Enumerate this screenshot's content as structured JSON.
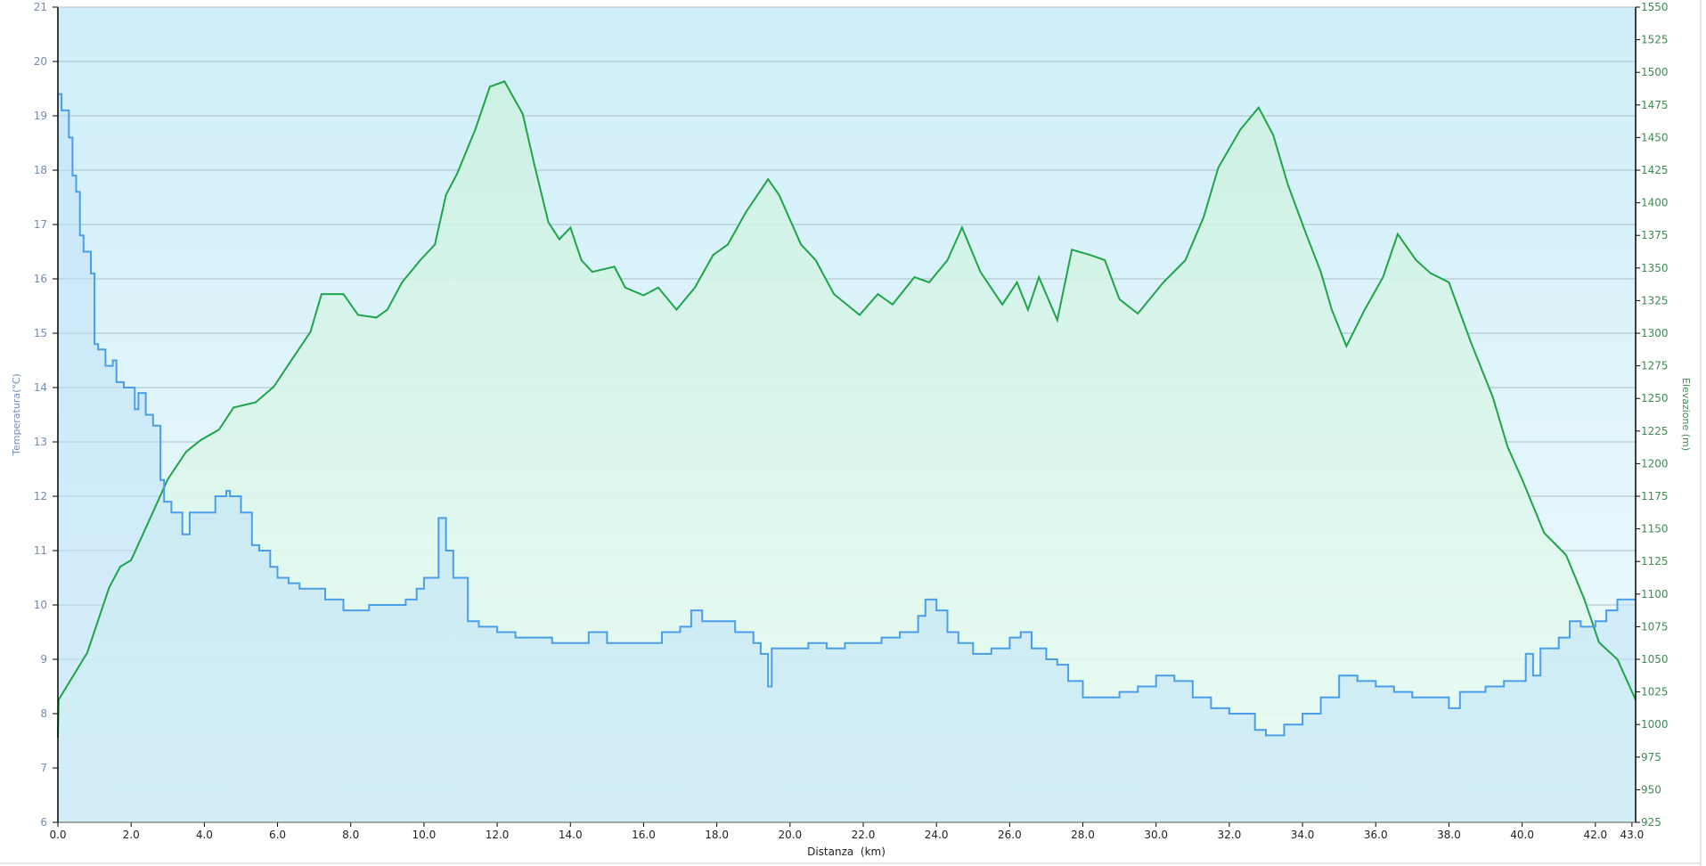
{
  "chart_data": {
    "type": "line",
    "title": "",
    "xlabel": "Distanza  (km)",
    "ylabel_left": "Temperatura(°C)",
    "ylabel_right": "Elevazione (m)",
    "xlim": [
      0,
      43.1
    ],
    "ylim_left": [
      6,
      21
    ],
    "ylim_right": [
      925,
      1550
    ],
    "x_ticks": [
      "0.0",
      "2.0",
      "4.0",
      "6.0",
      "8.0",
      "10.0",
      "12.0",
      "14.0",
      "16.0",
      "18.0",
      "20.0",
      "22.0",
      "24.0",
      "26.0",
      "28.0",
      "30.0",
      "32.0",
      "34.0",
      "36.0",
      "38.0",
      "40.0",
      "42.0",
      "43.0"
    ],
    "y_ticks_left": [
      "6",
      "7",
      "8",
      "9",
      "10",
      "11",
      "12",
      "13",
      "14",
      "15",
      "16",
      "17",
      "18",
      "19",
      "20",
      "21"
    ],
    "y_ticks_right": [
      "925",
      "950",
      "975",
      "1000",
      "1025",
      "1050",
      "1075",
      "1100",
      "1125",
      "1150",
      "1175",
      "1200",
      "1225",
      "1250",
      "1275",
      "1300",
      "1325",
      "1350",
      "1375",
      "1400",
      "1425",
      "1450",
      "1475",
      "1500",
      "1525",
      "1550"
    ],
    "grid": true,
    "colors": {
      "temperature": "#4a9ee8",
      "temperature_fill": "#bfe2f7",
      "elevation": "#1fa44a",
      "elevation_fill": "#dcf7ea",
      "background_top": "#cfeef9",
      "background_bottom": "#f2fbfd",
      "left_axis_text": "#6f8db5",
      "right_axis_text": "#3f8a55",
      "grid": "#a9bec6"
    },
    "series": [
      {
        "axis": "right",
        "x": [
          0,
          0.02,
          0.8,
          1.4,
          1.7,
          2.0,
          2.6,
          3.0,
          3.5,
          3.9,
          4.4,
          4.8,
          5.4,
          5.9,
          6.3,
          6.9,
          7.2,
          7.8,
          8.2,
          8.7,
          9.0,
          9.4,
          9.9,
          10.3,
          10.6,
          10.9,
          11.4,
          11.8,
          12.2,
          12.7,
          13.0,
          13.4,
          13.7,
          14.0,
          14.3,
          14.6,
          15.2,
          15.5,
          16.0,
          16.4,
          16.9,
          17.4,
          17.9,
          18.3,
          18.8,
          19.4,
          19.7,
          20.3,
          20.7,
          21.2,
          21.9,
          22.4,
          22.8,
          23.4,
          23.8,
          24.3,
          24.7,
          25.2,
          25.8,
          26.2,
          26.5,
          26.8,
          27.3,
          27.7,
          28.2,
          28.6,
          29.0,
          29.5,
          30.2,
          30.8,
          31.3,
          31.7,
          32.3,
          32.8,
          33.2,
          33.6,
          34.1,
          34.5,
          34.8,
          35.2,
          35.7,
          36.2,
          36.6,
          37.1,
          37.5,
          38.0,
          38.6,
          39.2,
          39.6,
          40.0,
          40.6,
          41.2,
          41.7,
          42.1,
          42.6,
          43.1
        ],
        "values": [
          990,
          1019,
          1055,
          1105,
          1121,
          1126,
          1163,
          1188,
          1209,
          1218,
          1226,
          1243,
          1247,
          1259,
          1276,
          1301,
          1330,
          1330,
          1314,
          1312,
          1318,
          1339,
          1356,
          1368,
          1406,
          1422,
          1456,
          1489,
          1493,
          1468,
          1431,
          1385,
          1372,
          1381,
          1356,
          1347,
          1351,
          1335,
          1329,
          1335,
          1318,
          1335,
          1360,
          1368,
          1393,
          1418,
          1406,
          1368,
          1356,
          1330,
          1314,
          1330,
          1322,
          1343,
          1339,
          1356,
          1381,
          1347,
          1322,
          1339,
          1318,
          1343,
          1310,
          1364,
          1360,
          1356,
          1326,
          1315,
          1339,
          1356,
          1389,
          1427,
          1456,
          1473,
          1452,
          1414,
          1376,
          1347,
          1318,
          1290,
          1318,
          1343,
          1376,
          1356,
          1346,
          1339,
          1293,
          1251,
          1213,
          1188,
          1147,
          1130,
          1096,
          1063,
          1050,
          1019
        ]
      },
      {
        "axis": "left",
        "step": true,
        "x": [
          0,
          0.1,
          0.3,
          0.4,
          0.5,
          0.6,
          0.7,
          0.9,
          1.0,
          1.1,
          1.3,
          1.5,
          1.6,
          1.8,
          2.1,
          2.2,
          2.4,
          2.6,
          2.8,
          2.9,
          3.1,
          3.4,
          3.6,
          4.0,
          4.3,
          4.6,
          4.7,
          5.0,
          5.3,
          5.5,
          5.8,
          6.0,
          6.3,
          6.6,
          7.0,
          7.3,
          7.8,
          8.1,
          8.5,
          9.0,
          9.5,
          9.8,
          10.0,
          10.4,
          10.6,
          10.8,
          11.2,
          11.5,
          12.0,
          12.5,
          13.0,
          13.5,
          14.0,
          14.5,
          15.0,
          15.5,
          16.0,
          16.5,
          17.0,
          17.3,
          17.6,
          18.0,
          18.5,
          19.0,
          19.2,
          19.4,
          19.5,
          20.0,
          20.5,
          21.0,
          21.5,
          22.0,
          22.5,
          23.0,
          23.5,
          23.7,
          24.0,
          24.3,
          24.6,
          25.0,
          25.5,
          26.0,
          26.3,
          26.6,
          27.0,
          27.3,
          27.6,
          28.0,
          28.5,
          29.0,
          29.5,
          30.0,
          30.5,
          31.0,
          31.5,
          32.0,
          32.5,
          32.7,
          33.0,
          33.5,
          34.0,
          34.5,
          35.0,
          35.5,
          36.0,
          36.5,
          37.0,
          37.5,
          38.0,
          38.3,
          39.0,
          39.5,
          40.0,
          40.1,
          40.3,
          40.5,
          41.0,
          41.3,
          41.6,
          42.0,
          42.3,
          42.6,
          43.1
        ],
        "values": [
          19.4,
          19.1,
          18.6,
          17.9,
          17.6,
          16.8,
          16.5,
          16.1,
          14.8,
          14.7,
          14.4,
          14.5,
          14.1,
          14.0,
          13.6,
          13.9,
          13.5,
          13.3,
          12.3,
          11.9,
          11.7,
          11.3,
          11.7,
          11.7,
          12.0,
          12.1,
          12.0,
          11.7,
          11.1,
          11.0,
          10.7,
          10.5,
          10.4,
          10.3,
          10.3,
          10.1,
          9.9,
          9.9,
          10.0,
          10.0,
          10.1,
          10.3,
          10.5,
          11.6,
          11.0,
          10.5,
          9.7,
          9.6,
          9.5,
          9.4,
          9.4,
          9.3,
          9.3,
          9.5,
          9.3,
          9.3,
          9.3,
          9.5,
          9.6,
          9.9,
          9.7,
          9.7,
          9.5,
          9.3,
          9.1,
          8.5,
          9.2,
          9.2,
          9.3,
          9.2,
          9.3,
          9.3,
          9.4,
          9.5,
          9.8,
          10.1,
          9.9,
          9.5,
          9.3,
          9.1,
          9.2,
          9.4,
          9.5,
          9.2,
          9.0,
          8.9,
          8.6,
          8.3,
          8.3,
          8.4,
          8.5,
          8.7,
          8.6,
          8.3,
          8.1,
          8.0,
          8.0,
          7.7,
          7.6,
          7.8,
          8.0,
          8.3,
          8.7,
          8.6,
          8.5,
          8.4,
          8.3,
          8.3,
          8.1,
          8.4,
          8.5,
          8.6,
          8.6,
          9.1,
          8.7,
          9.2,
          9.4,
          9.7,
          9.6,
          9.7,
          9.9,
          10.1,
          10.1
        ]
      }
    ]
  }
}
